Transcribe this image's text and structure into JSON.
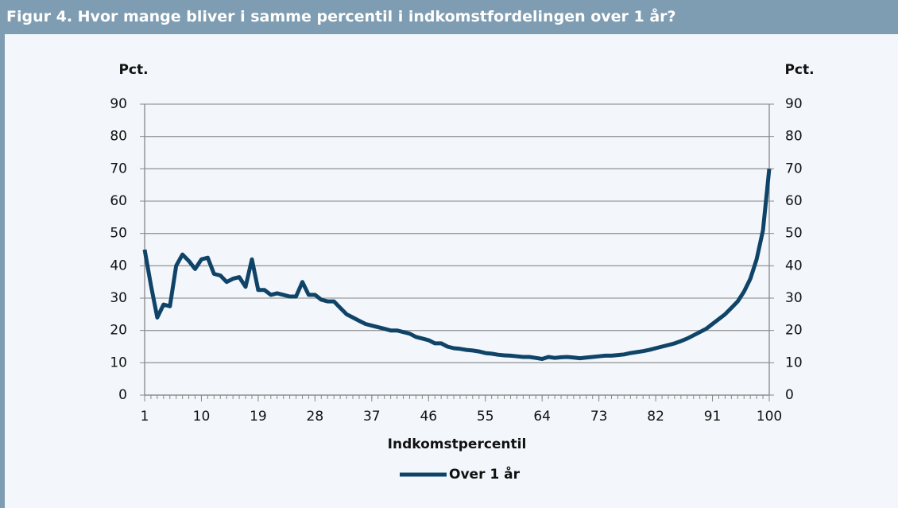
{
  "chart_data": {
    "type": "line",
    "title": "Figur 4. Hvor mange bliver i samme percentil i indkomstfordelingen over 1 år?",
    "ylabel": "Pct.",
    "y2label": "Pct.",
    "xlabel": "Indkomstpercentil",
    "x": [
      1,
      2,
      3,
      4,
      5,
      6,
      7,
      8,
      9,
      10,
      11,
      12,
      13,
      14,
      15,
      16,
      17,
      18,
      19,
      20,
      21,
      22,
      23,
      24,
      25,
      26,
      27,
      28,
      29,
      30,
      31,
      32,
      33,
      34,
      35,
      36,
      37,
      38,
      39,
      40,
      41,
      42,
      43,
      44,
      45,
      46,
      47,
      48,
      49,
      50,
      51,
      52,
      53,
      54,
      55,
      56,
      57,
      58,
      59,
      60,
      61,
      62,
      63,
      64,
      65,
      66,
      67,
      68,
      69,
      70,
      71,
      72,
      73,
      74,
      75,
      76,
      77,
      78,
      79,
      80,
      81,
      82,
      83,
      84,
      85,
      86,
      87,
      88,
      89,
      90,
      91,
      92,
      93,
      94,
      95,
      96,
      97,
      98,
      99,
      100
    ],
    "series": [
      {
        "name": "Over 1 år",
        "color": "#0f4468",
        "values": [
          45,
          34,
          24,
          28,
          27.5,
          40,
          43.5,
          41.5,
          39,
          42,
          42.5,
          37.5,
          37,
          35,
          36,
          36.5,
          33.5,
          42,
          32.5,
          32.5,
          31,
          31.5,
          31,
          30.5,
          30.5,
          35,
          31,
          31,
          29.5,
          29,
          29,
          27,
          25,
          24,
          23,
          22,
          21.5,
          21,
          20.5,
          20,
          20,
          19.5,
          19,
          18,
          17.5,
          17,
          16,
          16,
          15,
          14.5,
          14.3,
          14,
          13.8,
          13.5,
          13,
          12.8,
          12.5,
          12.3,
          12.2,
          12,
          11.8,
          11.8,
          11.5,
          11.2,
          11.8,
          11.5,
          11.7,
          11.8,
          11.6,
          11.4,
          11.6,
          11.8,
          12,
          12.2,
          12.2,
          12.4,
          12.6,
          13,
          13.3,
          13.6,
          14,
          14.5,
          15,
          15.5,
          16,
          16.7,
          17.5,
          18.5,
          19.5,
          20.5,
          22,
          23.5,
          25,
          27,
          29,
          32,
          36,
          42,
          51,
          70
        ]
      }
    ],
    "xlim": [
      1,
      100
    ],
    "xticks": [
      1,
      10,
      19,
      28,
      37,
      46,
      55,
      64,
      73,
      82,
      91,
      100
    ],
    "ylim": [
      0,
      90
    ],
    "yticks": [
      0,
      10,
      20,
      30,
      40,
      50,
      60,
      70,
      80,
      90
    ],
    "y2lim": [
      0,
      90
    ],
    "y2ticks": [
      0,
      10,
      20,
      30,
      40,
      50,
      60,
      70,
      80,
      90
    ],
    "grid": true
  }
}
